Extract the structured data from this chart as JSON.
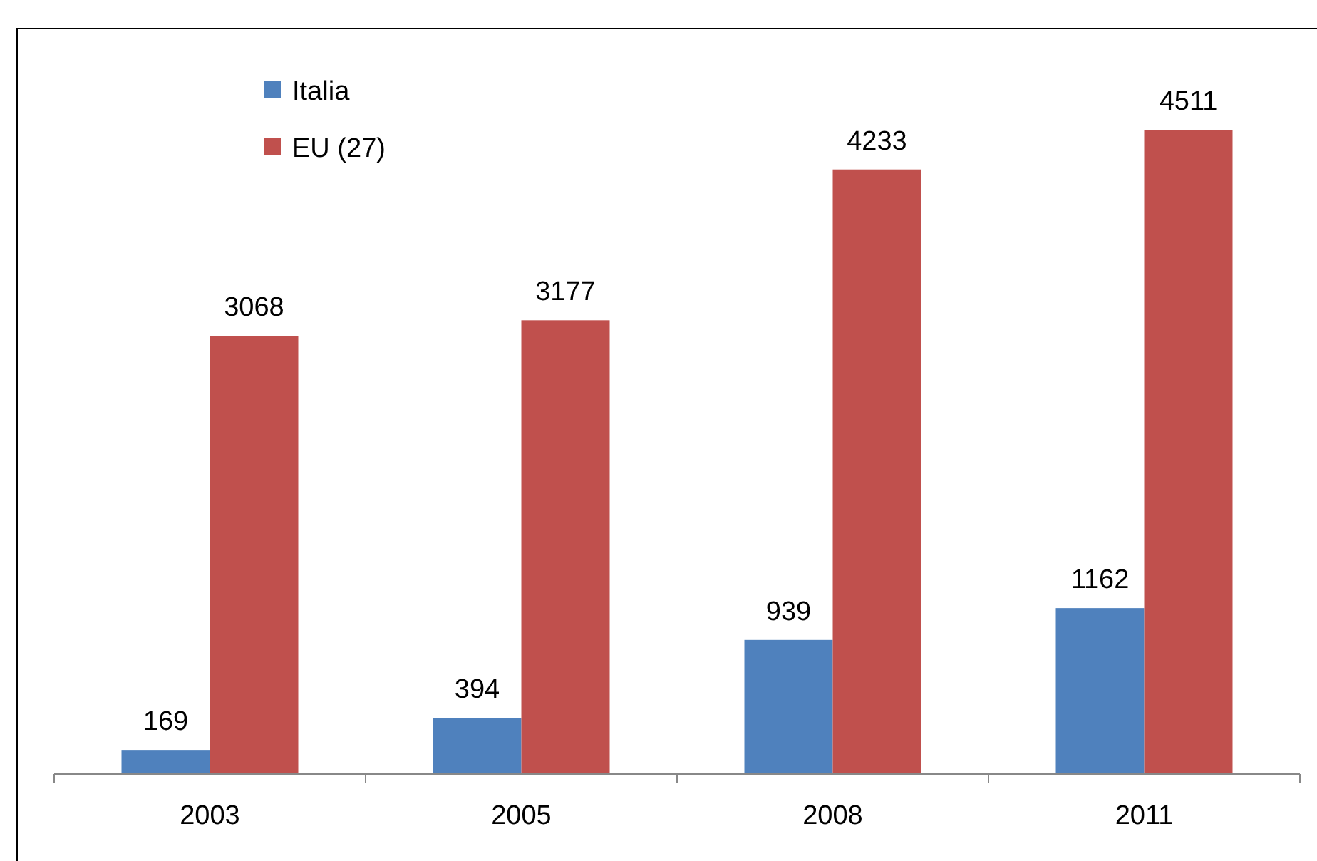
{
  "chart_data": {
    "type": "bar",
    "categories": [
      "2003",
      "2005",
      "2008",
      "2011"
    ],
    "series": [
      {
        "name": "Italia",
        "color": "#4f81bd",
        "values": [
          169,
          394,
          939,
          1162
        ]
      },
      {
        "name": "EU (27)",
        "color": "#c0504d",
        "values": [
          3068,
          3177,
          4233,
          4511
        ]
      }
    ],
    "tick_labels": "x",
    "data_labels": true,
    "legend": "top left",
    "grid": false
  }
}
